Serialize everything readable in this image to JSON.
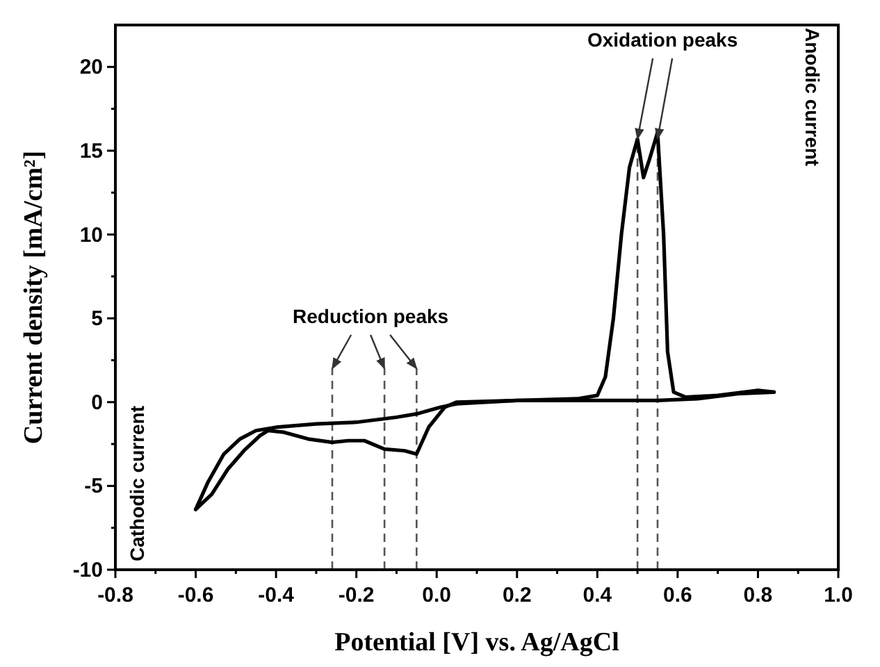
{
  "chart_data": {
    "type": "line",
    "xlabel": "Potential [V] vs. Ag/AgCl",
    "ylabel": "Current density [mA/cm²]",
    "xlim": [
      -0.8,
      1.0
    ],
    "xticks": [
      -0.8,
      {
        "value": -0.7,
        "label": null
      },
      -0.6,
      {
        "value": -0.5,
        "label": null
      },
      -0.4,
      {
        "value": -0.3,
        "label": null
      },
      -0.2,
      {
        "value": -0.1,
        "label": null
      },
      {
        "value": 0,
        "label": "0.0"
      },
      {
        "value": 0.1,
        "label": null
      },
      0.2,
      {
        "value": 0.3,
        "label": null
      },
      0.4,
      {
        "value": 0.5,
        "label": null
      },
      0.6,
      {
        "value": 0.7,
        "label": null
      },
      0.8,
      {
        "value": 0.9,
        "label": null
      },
      {
        "value": 1,
        "label": "1.0"
      }
    ],
    "ylim": [
      -10,
      22.5
    ],
    "yticks": [
      -10,
      {
        "value": -7.5,
        "label": null
      },
      -5,
      {
        "value": -2.5,
        "label": null
      },
      0,
      {
        "value": 2.5,
        "label": null
      },
      5,
      {
        "value": 7.5,
        "label": null
      },
      10,
      {
        "value": 12.5,
        "label": null
      },
      15,
      {
        "value": 17.5,
        "label": null
      },
      20
    ],
    "grid": false,
    "legend": false,
    "marker": "none",
    "line_style": "solid",
    "series": [
      {
        "color": "#000000",
        "x": [
          -0.6,
          -0.57,
          -0.53,
          -0.49,
          -0.45,
          -0.4,
          -0.3,
          -0.2,
          -0.1,
          -0.05,
          0.01,
          0.05,
          0.2,
          0.35,
          0.4,
          0.42,
          0.44,
          0.46,
          0.48,
          0.5,
          0.515,
          0.53,
          0.55,
          0.565,
          0.575,
          0.59,
          0.62,
          0.7,
          0.8,
          0.84
        ],
        "values": [
          -6.4,
          -4.8,
          -3.1,
          -2.2,
          -1.7,
          -1.5,
          -1.3,
          -1.2,
          -0.9,
          -0.7,
          -0.3,
          -0.1,
          0.1,
          0.2,
          0.4,
          1.5,
          5,
          10,
          14,
          15.7,
          13.4,
          14.5,
          16.1,
          10,
          3,
          0.6,
          0.3,
          0.4,
          0.7,
          0.6
        ]
      },
      {
        "color": "#000000",
        "x": [
          -0.6,
          -0.56,
          -0.52,
          -0.48,
          -0.44,
          -0.42,
          -0.38,
          -0.32,
          -0.26,
          -0.22,
          -0.18,
          -0.13,
          -0.08,
          -0.05,
          -0.02,
          0.02,
          0.05,
          0.2,
          0.4,
          0.55,
          0.65,
          0.75,
          0.84
        ],
        "values": [
          -6.4,
          -5.5,
          -4.0,
          -2.9,
          -2.0,
          -1.7,
          -1.8,
          -2.2,
          -2.4,
          -2.3,
          -2.3,
          -2.8,
          -2.9,
          -3.1,
          -1.5,
          -0.3,
          0,
          0.1,
          0.1,
          0.1,
          0.2,
          0.5,
          0.6
        ]
      }
    ],
    "ref_lines": [
      {
        "axis": "x",
        "value": -0.26,
        "color": "#555555",
        "line_style": "dashed"
      },
      {
        "axis": "x",
        "value": -0.13,
        "color": "#555555",
        "line_style": "dashed"
      },
      {
        "axis": "x",
        "value": -0.05,
        "color": "#555555",
        "line_style": "dashed"
      },
      {
        "axis": "x",
        "value": 0.5,
        "color": "#555555",
        "line_style": "dashed"
      },
      {
        "axis": "x",
        "value": 0.55,
        "color": "#555555",
        "line_style": "dashed"
      }
    ],
    "annotations": [
      {
        "text": "Reduction peaks",
        "x": -0.13,
        "y": 2
      },
      {
        "text": "Oxidation peaks",
        "x": 0.5,
        "y": 15.7
      },
      "Anodic current",
      "Cathodic current"
    ]
  }
}
